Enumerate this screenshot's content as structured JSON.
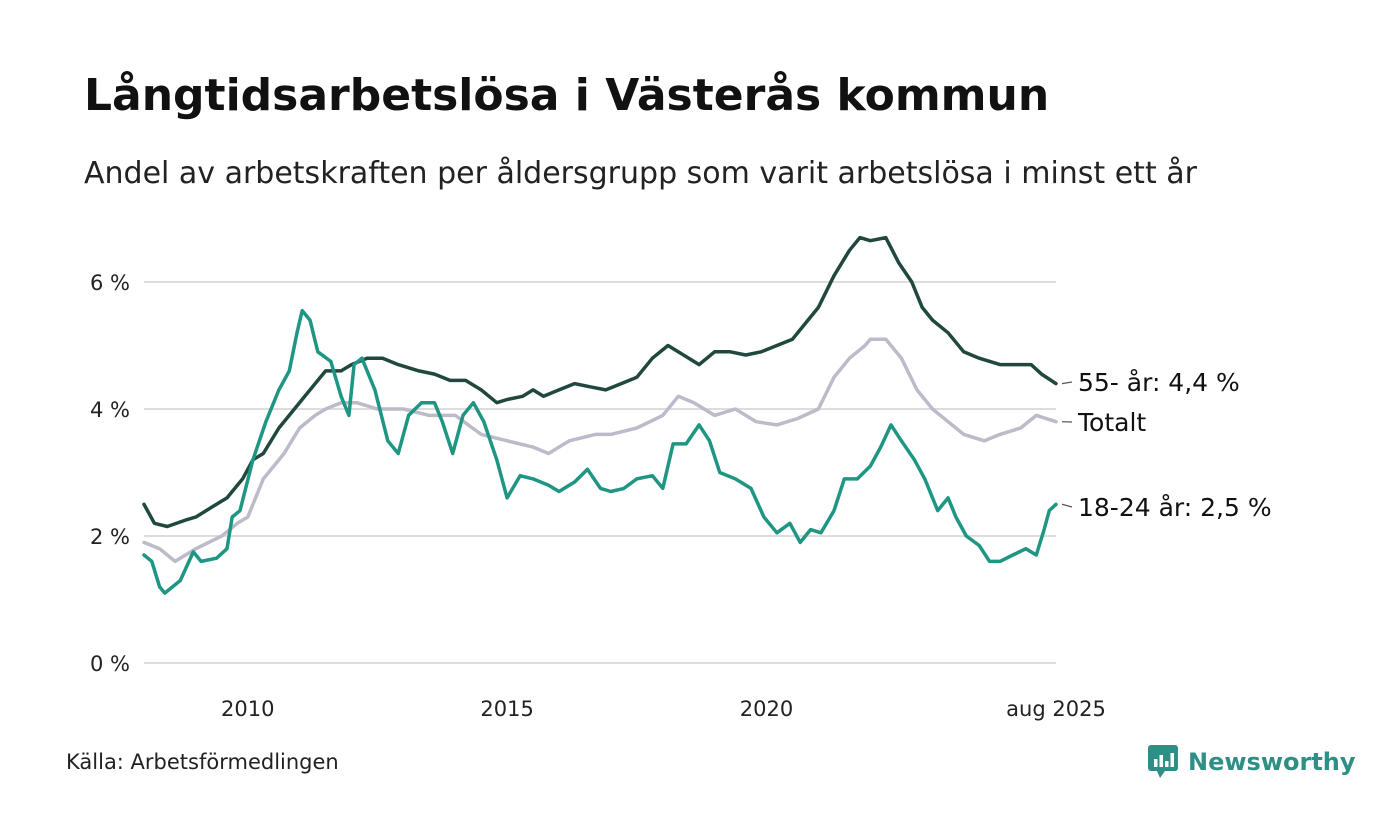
{
  "title": "Långtidsarbetslösa i Västerås kommun",
  "subtitle": "Andel av arbetskraften per åldersgrupp som varit arbetslösa i minst ett år",
  "source": "Källa: Arbetsförmedlingen",
  "brand": {
    "name": "Newsworthy",
    "icon": "newsworthy-logo-icon",
    "color": "#2d8f86"
  },
  "chart_data": {
    "type": "line",
    "x_range": [
      2008.0,
      2025.58
    ],
    "x_ticks": [
      {
        "value": 2010,
        "label": "2010"
      },
      {
        "value": 2015,
        "label": "2015"
      },
      {
        "value": 2020,
        "label": "2020"
      },
      {
        "value": 2025.58,
        "label": "aug 2025"
      }
    ],
    "ylim": [
      0,
      7
    ],
    "y_ticks": [
      {
        "value": 0,
        "label": "0 %"
      },
      {
        "value": 2,
        "label": "2 %"
      },
      {
        "value": 4,
        "label": "4 %"
      },
      {
        "value": 6,
        "label": "6 %"
      }
    ],
    "grid": "horizontal",
    "series": [
      {
        "key": "totalt",
        "end_label": "Totalt",
        "color": "#bdbac9",
        "points": [
          [
            2008.0,
            1.9
          ],
          [
            2008.3,
            1.8
          ],
          [
            2008.6,
            1.6
          ],
          [
            2009.0,
            1.8
          ],
          [
            2009.5,
            2.0
          ],
          [
            2009.8,
            2.2
          ],
          [
            2010.0,
            2.3
          ],
          [
            2010.3,
            2.9
          ],
          [
            2010.7,
            3.3
          ],
          [
            2011.0,
            3.7
          ],
          [
            2011.3,
            3.9
          ],
          [
            2011.5,
            4.0
          ],
          [
            2011.8,
            4.1
          ],
          [
            2012.1,
            4.1
          ],
          [
            2012.5,
            4.0
          ],
          [
            2013.0,
            4.0
          ],
          [
            2013.5,
            3.9
          ],
          [
            2014.0,
            3.9
          ],
          [
            2014.5,
            3.6
          ],
          [
            2015.0,
            3.5
          ],
          [
            2015.5,
            3.4
          ],
          [
            2015.8,
            3.3
          ],
          [
            2016.2,
            3.5
          ],
          [
            2016.7,
            3.6
          ],
          [
            2017.0,
            3.6
          ],
          [
            2017.5,
            3.7
          ],
          [
            2018.0,
            3.9
          ],
          [
            2018.3,
            4.2
          ],
          [
            2018.6,
            4.1
          ],
          [
            2019.0,
            3.9
          ],
          [
            2019.4,
            4.0
          ],
          [
            2019.8,
            3.8
          ],
          [
            2020.2,
            3.75
          ],
          [
            2020.6,
            3.85
          ],
          [
            2021.0,
            4.0
          ],
          [
            2021.3,
            4.5
          ],
          [
            2021.6,
            4.8
          ],
          [
            2021.9,
            5.0
          ],
          [
            2022.0,
            5.1
          ],
          [
            2022.3,
            5.1
          ],
          [
            2022.6,
            4.8
          ],
          [
            2022.9,
            4.3
          ],
          [
            2023.2,
            4.0
          ],
          [
            2023.5,
            3.8
          ],
          [
            2023.8,
            3.6
          ],
          [
            2024.2,
            3.5
          ],
          [
            2024.5,
            3.6
          ],
          [
            2024.9,
            3.7
          ],
          [
            2025.2,
            3.9
          ],
          [
            2025.58,
            3.8
          ]
        ]
      },
      {
        "key": "55",
        "end_label": "55- år: 4,4 %",
        "color": "#21483f",
        "points": [
          [
            2008.0,
            2.5
          ],
          [
            2008.2,
            2.2
          ],
          [
            2008.45,
            2.15
          ],
          [
            2008.8,
            2.25
          ],
          [
            2009.0,
            2.3
          ],
          [
            2009.3,
            2.45
          ],
          [
            2009.6,
            2.6
          ],
          [
            2009.9,
            2.9
          ],
          [
            2010.1,
            3.2
          ],
          [
            2010.3,
            3.3
          ],
          [
            2010.6,
            3.7
          ],
          [
            2010.9,
            4.0
          ],
          [
            2011.2,
            4.3
          ],
          [
            2011.5,
            4.6
          ],
          [
            2011.8,
            4.6
          ],
          [
            2012.0,
            4.7
          ],
          [
            2012.3,
            4.8
          ],
          [
            2012.6,
            4.8
          ],
          [
            2012.9,
            4.7
          ],
          [
            2013.3,
            4.6
          ],
          [
            2013.6,
            4.55
          ],
          [
            2013.9,
            4.45
          ],
          [
            2014.2,
            4.45
          ],
          [
            2014.5,
            4.3
          ],
          [
            2014.8,
            4.1
          ],
          [
            2015.0,
            4.15
          ],
          [
            2015.3,
            4.2
          ],
          [
            2015.5,
            4.3
          ],
          [
            2015.7,
            4.2
          ],
          [
            2016.0,
            4.3
          ],
          [
            2016.3,
            4.4
          ],
          [
            2016.6,
            4.35
          ],
          [
            2016.9,
            4.3
          ],
          [
            2017.2,
            4.4
          ],
          [
            2017.5,
            4.5
          ],
          [
            2017.8,
            4.8
          ],
          [
            2018.1,
            5.0
          ],
          [
            2018.4,
            4.85
          ],
          [
            2018.7,
            4.7
          ],
          [
            2019.0,
            4.9
          ],
          [
            2019.3,
            4.9
          ],
          [
            2019.6,
            4.85
          ],
          [
            2019.9,
            4.9
          ],
          [
            2020.2,
            5.0
          ],
          [
            2020.5,
            5.1
          ],
          [
            2020.8,
            5.4
          ],
          [
            2021.0,
            5.6
          ],
          [
            2021.3,
            6.1
          ],
          [
            2021.6,
            6.5
          ],
          [
            2021.8,
            6.7
          ],
          [
            2022.0,
            6.65
          ],
          [
            2022.3,
            6.7
          ],
          [
            2022.55,
            6.3
          ],
          [
            2022.8,
            6.0
          ],
          [
            2023.0,
            5.6
          ],
          [
            2023.2,
            5.4
          ],
          [
            2023.5,
            5.2
          ],
          [
            2023.8,
            4.9
          ],
          [
            2024.1,
            4.8
          ],
          [
            2024.5,
            4.7
          ],
          [
            2024.8,
            4.7
          ],
          [
            2025.1,
            4.7
          ],
          [
            2025.3,
            4.55
          ],
          [
            2025.58,
            4.4
          ]
        ]
      },
      {
        "key": "18-24",
        "end_label": "18-24 år: 2,5 %",
        "color": "#1e9683",
        "points": [
          [
            2008.0,
            1.7
          ],
          [
            2008.15,
            1.6
          ],
          [
            2008.3,
            1.2
          ],
          [
            2008.4,
            1.1
          ],
          [
            2008.7,
            1.3
          ],
          [
            2008.95,
            1.75
          ],
          [
            2009.1,
            1.6
          ],
          [
            2009.4,
            1.65
          ],
          [
            2009.6,
            1.8
          ],
          [
            2009.7,
            2.3
          ],
          [
            2009.85,
            2.4
          ],
          [
            2010.1,
            3.2
          ],
          [
            2010.35,
            3.8
          ],
          [
            2010.6,
            4.3
          ],
          [
            2010.8,
            4.6
          ],
          [
            2010.95,
            5.2
          ],
          [
            2011.05,
            5.55
          ],
          [
            2011.2,
            5.4
          ],
          [
            2011.35,
            4.9
          ],
          [
            2011.6,
            4.75
          ],
          [
            2011.8,
            4.2
          ],
          [
            2011.95,
            3.9
          ],
          [
            2012.05,
            4.7
          ],
          [
            2012.2,
            4.8
          ],
          [
            2012.45,
            4.3
          ],
          [
            2012.7,
            3.5
          ],
          [
            2012.9,
            3.3
          ],
          [
            2013.1,
            3.9
          ],
          [
            2013.35,
            4.1
          ],
          [
            2013.6,
            4.1
          ],
          [
            2013.75,
            3.8
          ],
          [
            2013.95,
            3.3
          ],
          [
            2014.15,
            3.9
          ],
          [
            2014.35,
            4.1
          ],
          [
            2014.55,
            3.8
          ],
          [
            2014.8,
            3.2
          ],
          [
            2015.0,
            2.6
          ],
          [
            2015.25,
            2.95
          ],
          [
            2015.5,
            2.9
          ],
          [
            2015.8,
            2.8
          ],
          [
            2016.0,
            2.7
          ],
          [
            2016.3,
            2.85
          ],
          [
            2016.55,
            3.05
          ],
          [
            2016.8,
            2.75
          ],
          [
            2017.0,
            2.7
          ],
          [
            2017.25,
            2.75
          ],
          [
            2017.5,
            2.9
          ],
          [
            2017.8,
            2.95
          ],
          [
            2018.0,
            2.75
          ],
          [
            2018.2,
            3.45
          ],
          [
            2018.45,
            3.45
          ],
          [
            2018.7,
            3.75
          ],
          [
            2018.9,
            3.5
          ],
          [
            2019.1,
            3.0
          ],
          [
            2019.4,
            2.9
          ],
          [
            2019.7,
            2.75
          ],
          [
            2019.95,
            2.3
          ],
          [
            2020.2,
            2.05
          ],
          [
            2020.45,
            2.2
          ],
          [
            2020.65,
            1.9
          ],
          [
            2020.85,
            2.1
          ],
          [
            2021.05,
            2.05
          ],
          [
            2021.3,
            2.4
          ],
          [
            2021.5,
            2.9
          ],
          [
            2021.75,
            2.9
          ],
          [
            2022.0,
            3.1
          ],
          [
            2022.2,
            3.4
          ],
          [
            2022.4,
            3.75
          ],
          [
            2022.6,
            3.5
          ],
          [
            2022.85,
            3.2
          ],
          [
            2023.05,
            2.9
          ],
          [
            2023.3,
            2.4
          ],
          [
            2023.5,
            2.6
          ],
          [
            2023.65,
            2.3
          ],
          [
            2023.85,
            2.0
          ],
          [
            2024.1,
            1.85
          ],
          [
            2024.3,
            1.6
          ],
          [
            2024.5,
            1.6
          ],
          [
            2024.75,
            1.7
          ],
          [
            2025.0,
            1.8
          ],
          [
            2025.2,
            1.7
          ],
          [
            2025.35,
            2.1
          ],
          [
            2025.45,
            2.4
          ],
          [
            2025.58,
            2.5
          ]
        ]
      }
    ]
  }
}
